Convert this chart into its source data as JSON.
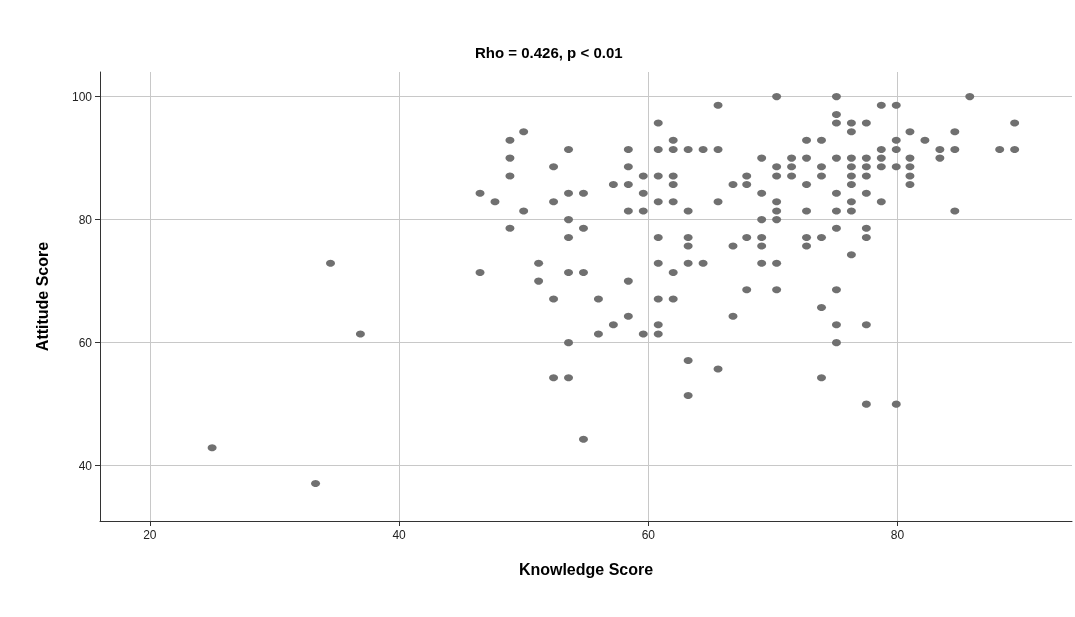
{
  "chart_data": {
    "type": "scatter",
    "title": "Rho = 0.426, p < 0.01",
    "xlabel": "Knowledge Score",
    "ylabel": "Attitude Score",
    "xlim": [
      16,
      94
    ],
    "ylim": [
      31,
      104
    ],
    "xticks": [
      20,
      40,
      60,
      80
    ],
    "yticks": [
      40,
      60,
      80,
      100
    ],
    "grid": true,
    "marker": "circle",
    "series": [
      {
        "color": "#707070",
        "x": [
          25.0,
          33.3,
          34.5,
          36.9,
          46.5,
          46.5,
          47.7,
          48.9,
          48.9,
          48.9,
          48.9,
          50.0,
          50.0,
          51.2,
          51.2,
          52.4,
          52.4,
          52.4,
          52.4,
          53.6,
          53.6,
          53.6,
          53.6,
          53.6,
          53.6,
          53.6,
          54.8,
          54.8,
          54.8,
          54.8,
          56.0,
          56.0,
          57.2,
          57.2,
          58.4,
          58.4,
          58.4,
          58.4,
          58.4,
          58.4,
          59.6,
          59.6,
          59.6,
          59.6,
          60.8,
          60.8,
          60.8,
          60.8,
          60.8,
          60.8,
          60.8,
          60.8,
          60.8,
          62.0,
          62.0,
          62.0,
          62.0,
          62.0,
          62.0,
          62.0,
          63.2,
          63.2,
          63.2,
          63.2,
          63.2,
          63.2,
          63.2,
          64.4,
          64.4,
          65.6,
          65.6,
          65.6,
          65.6,
          66.8,
          66.8,
          66.8,
          67.9,
          67.9,
          67.9,
          67.9,
          69.1,
          69.1,
          69.1,
          69.1,
          69.1,
          69.1,
          70.3,
          70.3,
          70.3,
          70.3,
          70.3,
          70.3,
          70.3,
          70.3,
          71.5,
          71.5,
          71.5,
          72.7,
          72.7,
          72.7,
          72.7,
          72.7,
          72.7,
          73.9,
          73.9,
          73.9,
          73.9,
          73.9,
          73.9,
          75.1,
          75.1,
          75.1,
          75.1,
          75.1,
          75.1,
          75.1,
          75.1,
          75.1,
          75.1,
          76.3,
          76.3,
          76.3,
          76.3,
          76.3,
          76.3,
          76.3,
          76.3,
          76.3,
          77.5,
          77.5,
          77.5,
          77.5,
          77.5,
          77.5,
          77.5,
          77.5,
          77.5,
          78.7,
          78.7,
          78.7,
          78.7,
          78.7,
          79.9,
          79.9,
          79.9,
          79.9,
          79.9,
          81.0,
          81.0,
          81.0,
          81.0,
          81.0,
          82.2,
          83.4,
          83.4,
          84.6,
          84.6,
          84.6,
          85.8,
          88.2,
          89.4,
          89.4
        ],
        "values": [
          42.9,
          37.1,
          72.9,
          61.4,
          84.3,
          71.4,
          82.9,
          92.9,
          90.0,
          87.1,
          78.6,
          94.3,
          81.4,
          72.9,
          70.0,
          88.6,
          82.9,
          67.1,
          54.3,
          91.4,
          84.3,
          80.0,
          77.1,
          71.4,
          60.0,
          54.3,
          84.3,
          78.6,
          71.4,
          44.3,
          67.1,
          61.4,
          85.7,
          62.9,
          91.4,
          88.6,
          85.7,
          81.4,
          70.0,
          64.3,
          87.1,
          84.3,
          81.4,
          61.4,
          95.7,
          91.4,
          87.1,
          82.9,
          77.1,
          72.9,
          67.1,
          62.9,
          61.4,
          92.9,
          91.4,
          87.1,
          85.7,
          82.9,
          71.4,
          67.1,
          91.4,
          81.4,
          77.1,
          75.7,
          72.9,
          57.1,
          51.4,
          91.4,
          72.9,
          98.6,
          91.4,
          82.9,
          55.7,
          85.7,
          75.7,
          64.3,
          87.1,
          85.7,
          77.1,
          68.6,
          90.0,
          84.3,
          80.0,
          77.1,
          75.7,
          72.9,
          100,
          88.6,
          87.1,
          82.9,
          81.4,
          80.0,
          72.9,
          68.6,
          90.0,
          88.6,
          87.1,
          92.9,
          90.0,
          85.7,
          81.4,
          77.1,
          75.7,
          92.9,
          88.6,
          87.1,
          77.1,
          65.7,
          54.3,
          100,
          97.1,
          95.7,
          90.0,
          84.3,
          81.4,
          78.6,
          68.6,
          62.9,
          60.0,
          95.7,
          94.3,
          90.0,
          88.6,
          87.1,
          85.7,
          82.9,
          81.4,
          74.3,
          95.7,
          90.0,
          88.6,
          87.1,
          84.3,
          78.6,
          77.1,
          62.9,
          50.0,
          98.6,
          91.4,
          90.0,
          88.6,
          82.9,
          98.6,
          92.9,
          91.4,
          88.6,
          50.0,
          94.3,
          90.0,
          88.6,
          87.1,
          85.7,
          92.9,
          91.4,
          90.0,
          94.3,
          91.4,
          81.4,
          100,
          91.4,
          95.7,
          91.4
        ]
      }
    ]
  }
}
